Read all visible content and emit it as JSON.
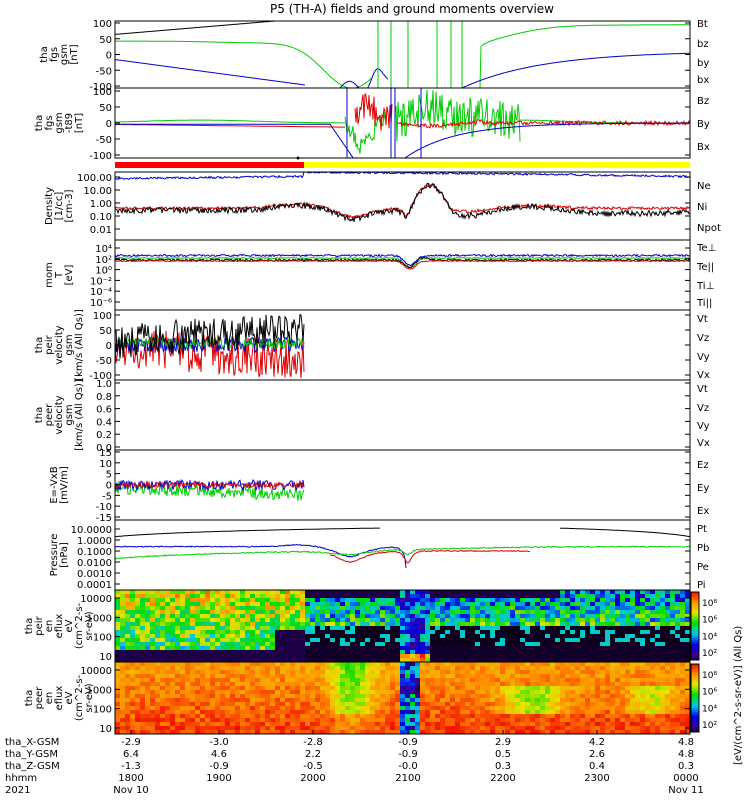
{
  "title": "P5 (TH-A) fields and ground moments overview",
  "chart_data": [
    {
      "id": "fgs_gsm",
      "type": "line",
      "ylabel": [
        "tha",
        "fgs",
        "gsm",
        "[nT]"
      ],
      "yticks": [
        "100",
        "50",
        "0",
        "-50",
        "-100"
      ],
      "ylim": [
        -100,
        100
      ],
      "series": [
        {
          "name": "Bt",
          "color": "#000000"
        },
        {
          "name": "bz",
          "color": "#dd0000"
        },
        {
          "name": "by",
          "color": "#00cc00"
        },
        {
          "name": "bx",
          "color": "#0000cc"
        }
      ]
    },
    {
      "id": "fgs_gsm_t89",
      "type": "line",
      "ylabel": [
        "tha",
        "fgs",
        "gsm",
        "-t89",
        "[nT]"
      ],
      "yticks": [
        "100",
        "50",
        "0",
        "-50",
        "-100"
      ],
      "ylim": [
        -120,
        120
      ],
      "series": [
        {
          "name": "Bz",
          "color": "#dd0000"
        },
        {
          "name": "By",
          "color": "#00cc00"
        },
        {
          "name": "Bx",
          "color": "#0000cc"
        }
      ]
    },
    {
      "id": "density",
      "type": "line",
      "ylabel": [
        "Density",
        "[1/cc]",
        "[cm-3]"
      ],
      "yticks": [
        "100.00",
        "10.00",
        "1.00",
        "0.10",
        "0.01"
      ],
      "log": true,
      "series": [
        {
          "name": "Ne",
          "color": "#dd0000"
        },
        {
          "name": "Ni",
          "color": "#000000"
        },
        {
          "name": "Npot",
          "color": "#0000cc"
        }
      ]
    },
    {
      "id": "mom_temp",
      "type": "line",
      "ylabel": [
        "mom",
        "T",
        "[eV]"
      ],
      "yticks": [
        "10⁴",
        "10²",
        "10⁰",
        "10⁻²",
        "10⁻⁴",
        "10⁻⁶"
      ],
      "log": true,
      "series": [
        {
          "name": "Te⊥",
          "color": "#dd0000"
        },
        {
          "name": "Te||",
          "color": "#000000"
        },
        {
          "name": "Ti⊥",
          "color": "#00cc00"
        },
        {
          "name": "Ti||",
          "color": "#00cc00"
        }
      ]
    },
    {
      "id": "peir_velocity",
      "type": "line",
      "ylabel": [
        "tha",
        "peir",
        "velocity",
        "gsm",
        "[km/s (All Qs)]"
      ],
      "yticks": [
        "100",
        "50",
        "0",
        "-50",
        "-100"
      ],
      "ylim": [
        -100,
        100
      ],
      "series": [
        {
          "name": "Vt",
          "color": "#000000"
        },
        {
          "name": "Vz",
          "color": "#dd0000"
        },
        {
          "name": "Vy",
          "color": "#00cc00"
        },
        {
          "name": "Vx",
          "color": "#0000cc"
        }
      ]
    },
    {
      "id": "peer_velocity",
      "type": "line",
      "ylabel": [
        "tha",
        "peer",
        "velocity",
        "gsm",
        "[km/s (All Qs)]"
      ],
      "yticks": [
        "1.0",
        "0.8",
        "0.6",
        "0.4",
        "0.2",
        "0.0"
      ],
      "ylim": [
        0,
        1
      ],
      "series": [
        {
          "name": "Vt",
          "color": "#000000"
        },
        {
          "name": "Vz",
          "color": "#dd0000"
        },
        {
          "name": "Vy",
          "color": "#00cc00"
        },
        {
          "name": "Vx",
          "color": "#0000cc"
        }
      ]
    },
    {
      "id": "e_field",
      "type": "line",
      "ylabel": [
        "E=-VxB",
        "[mV/m]"
      ],
      "yticks": [
        "15",
        "10",
        "5",
        "0",
        "-5",
        "-10",
        "-15"
      ],
      "ylim": [
        -15,
        15
      ],
      "series": [
        {
          "name": "Ez",
          "color": "#dd0000"
        },
        {
          "name": "Ey",
          "color": "#00cc00"
        },
        {
          "name": "Ex",
          "color": "#0000cc"
        }
      ]
    },
    {
      "id": "pressure",
      "type": "line",
      "ylabel": [
        "Pressure",
        "[nPa]"
      ],
      "yticks": [
        "10.0000",
        "1.0000",
        "0.1000",
        "0.0100",
        "0.0010",
        "0.0001"
      ],
      "log": true,
      "series": [
        {
          "name": "Pt",
          "color": "#000000"
        },
        {
          "name": "Pb",
          "color": "#dd0000"
        },
        {
          "name": "Pe",
          "color": "#00cc00"
        },
        {
          "name": "Pi",
          "color": "#0000cc"
        }
      ]
    },
    {
      "id": "peir_eflux",
      "type": "heatmap",
      "ylabel": [
        "tha",
        "peir",
        "en",
        "eflux",
        "eV",
        "(cm^2-s-",
        "sr-eV)"
      ],
      "yticks": [
        "10000",
        "1000",
        "100",
        "10"
      ],
      "colorbar": {
        "ticks": [
          "10⁸",
          "10⁶",
          "10⁴",
          "10²"
        ]
      }
    },
    {
      "id": "peer_eflux",
      "type": "heatmap",
      "ylabel": [
        "tha",
        "peer",
        "en",
        "eflux",
        "eV",
        "(cm^2-s-",
        "sr-eV)"
      ],
      "yticks": [
        "10000",
        "1000",
        "100",
        "10"
      ],
      "colorbar": {
        "ticks": [
          "10⁸",
          "10⁶",
          "10⁴",
          "10²"
        ]
      }
    }
  ],
  "colorbar_label": "[eV/(cm^2-s-sr-eV)] (All Qs)",
  "time_axis": {
    "rows": [
      {
        "label": "tha_X-GSM",
        "values": [
          "-2.9",
          "-3.0",
          "-2.8",
          "-0.9",
          "2.9",
          "4.2",
          "4.8"
        ]
      },
      {
        "label": "tha_Y-GSM",
        "values": [
          "6.4",
          "4.6",
          "2.2",
          "-0.9",
          "0.5",
          "2.6",
          "4.8"
        ]
      },
      {
        "label": "tha_Z-GSM",
        "values": [
          "-1.3",
          "-0.9",
          "-0.5",
          "-0.0",
          "0.3",
          "0.4",
          "0.3"
        ]
      },
      {
        "label": "hhmm",
        "values": [
          "1800",
          "1900",
          "2000",
          "2100",
          "2200",
          "2300",
          "0000"
        ]
      }
    ],
    "year": "2021",
    "start_date": "Nov 10",
    "end_date": "Nov 11"
  },
  "colors": {
    "mode_bar_red": "#ff0000",
    "mode_bar_yellow": "#ffff00"
  }
}
